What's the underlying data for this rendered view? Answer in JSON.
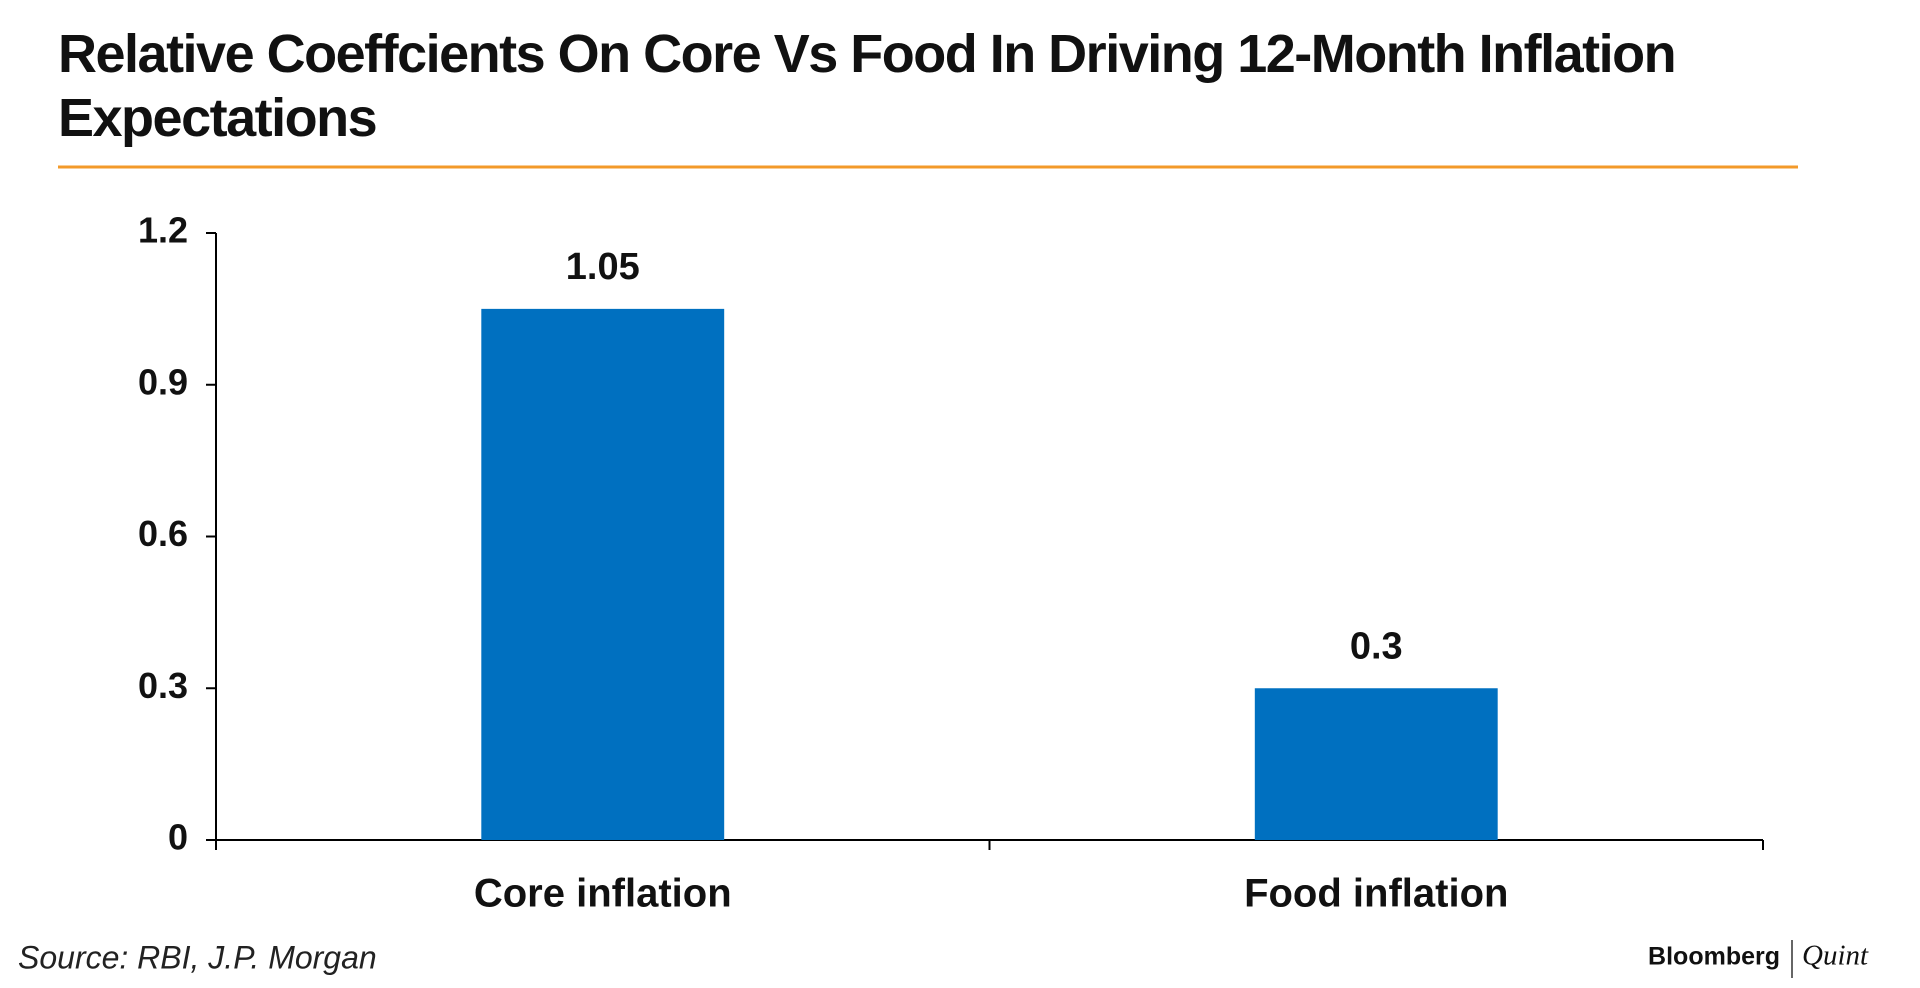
{
  "chart_data": {
    "type": "bar",
    "title": "Relative Coeffcients On Core Vs Food In Driving 12-Month Inflation Expectations",
    "categories": [
      "Core inflation",
      "Food inflation"
    ],
    "values": [
      1.05,
      0.3
    ],
    "color": "#0070c0",
    "ylim": [
      0,
      1.2
    ],
    "yticks": [
      0,
      0.3,
      0.6,
      0.9,
      1.2
    ],
    "grid": false,
    "source": "Source: RBI, J.P. Morgan",
    "brand": [
      "Bloomberg",
      "Quint"
    ]
  }
}
